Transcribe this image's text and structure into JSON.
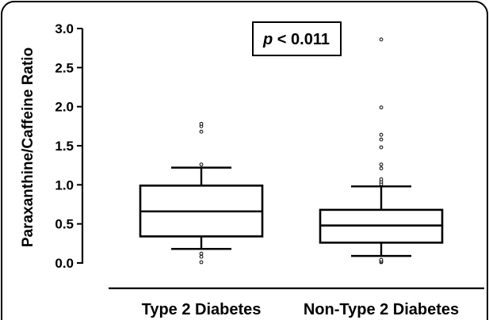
{
  "chart_data": {
    "type": "boxplot",
    "title": "",
    "xlabel": "",
    "ylabel": "Paraxanthine/Caffeine Ratio",
    "ylim": [
      0,
      3.0
    ],
    "yticks": [
      "0.0",
      "0.5",
      "1.0",
      "1.5",
      "2.0",
      "2.5",
      "3.0"
    ],
    "categories": [
      "Type 2 Diabetes",
      "Non-Type 2 Diabetes"
    ],
    "boxes": [
      {
        "category": "Type 2 Diabetes",
        "whisker_low": 0.18,
        "q1": 0.34,
        "median": 0.66,
        "q3": 0.99,
        "whisker_high": 1.22,
        "outliers": [
          0.01,
          0.08,
          0.12,
          1.26,
          1.68,
          1.75,
          1.78
        ]
      },
      {
        "category": "Non-Type 2 Diabetes",
        "whisker_low": 0.09,
        "q1": 0.26,
        "median": 0.48,
        "q3": 0.68,
        "whisker_high": 0.98,
        "outliers": [
          0.01,
          0.02,
          0.04,
          1.01,
          1.04,
          1.07,
          1.21,
          1.26,
          1.48,
          1.58,
          1.64,
          1.99,
          2.86
        ]
      }
    ],
    "annotation": {
      "italic": "p",
      "text": " < 0.011"
    },
    "colors": {
      "ink": "#000000",
      "background": "#ffffff"
    }
  }
}
